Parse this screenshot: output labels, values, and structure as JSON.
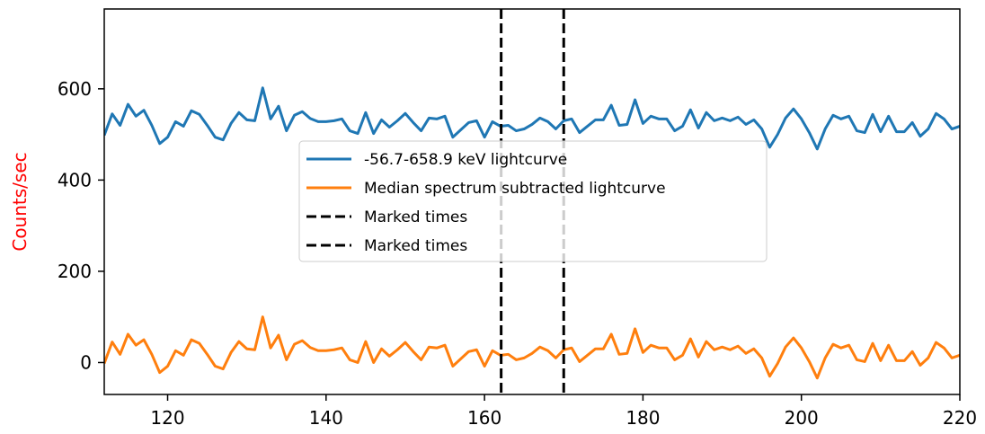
{
  "chart_data": {
    "type": "line",
    "xlabel": "",
    "ylabel": "Counts/sec",
    "ylabel_color": "#ff0000",
    "xlim": [
      112,
      220
    ],
    "ylim": [
      -70,
      775
    ],
    "xticks": [
      120,
      140,
      160,
      180,
      200,
      220
    ],
    "yticks": [
      0,
      200,
      400,
      600
    ],
    "grid": false,
    "legend_position": "center",
    "series": [
      {
        "name": "-56.7-658.9 keV lightcurve",
        "color": "#1f77b4",
        "x": [
          112,
          113,
          114,
          115,
          116,
          117,
          118,
          119,
          120,
          121,
          122,
          123,
          124,
          125,
          126,
          127,
          128,
          129,
          130,
          131,
          132,
          133,
          134,
          135,
          136,
          137,
          138,
          139,
          140,
          141,
          142,
          143,
          144,
          145,
          146,
          147,
          148,
          149,
          150,
          151,
          152,
          153,
          154,
          155,
          156,
          157,
          158,
          159,
          160,
          161,
          162,
          163,
          164,
          165,
          166,
          167,
          168,
          169,
          170,
          171,
          172,
          173,
          174,
          175,
          176,
          177,
          178,
          179,
          180,
          181,
          182,
          183,
          184,
          185,
          186,
          187,
          188,
          189,
          190,
          191,
          192,
          193,
          194,
          195,
          196,
          197,
          198,
          199,
          200,
          201,
          202,
          203,
          204,
          205,
          206,
          207,
          208,
          209,
          210,
          211,
          212,
          213,
          214,
          215,
          216,
          217,
          218,
          219,
          220
        ],
        "y": [
          498,
          545,
          520,
          566,
          540,
          553,
          520,
          480,
          494,
          528,
          518,
          552,
          544,
          520,
          494,
          488,
          524,
          548,
          532,
          530,
          602,
          534,
          562,
          508,
          542,
          550,
          535,
          528,
          528,
          530,
          534,
          508,
          502,
          548,
          502,
          532,
          516,
          530,
          546,
          526,
          508,
          536,
          534,
          540,
          494,
          510,
          526,
          530,
          494,
          528,
          518,
          520,
          508,
          512,
          522,
          536,
          528,
          512,
          530,
          534,
          504,
          518,
          532,
          532,
          564,
          520,
          522,
          576,
          524,
          540,
          534,
          534,
          508,
          518,
          554,
          514,
          548,
          530,
          536,
          530,
          538,
          522,
          532,
          512,
          472,
          500,
          536,
          556,
          534,
          504,
          468,
          512,
          542,
          534,
          540,
          508,
          504,
          544,
          506,
          540,
          506,
          506,
          526,
          496,
          512,
          546,
          534,
          512,
          518
        ]
      },
      {
        "name": "Median spectrum subtracted lightcurve",
        "color": "#ff7f0e",
        "x": [
          112,
          113,
          114,
          115,
          116,
          117,
          118,
          119,
          120,
          121,
          122,
          123,
          124,
          125,
          126,
          127,
          128,
          129,
          130,
          131,
          132,
          133,
          134,
          135,
          136,
          137,
          138,
          139,
          140,
          141,
          142,
          143,
          144,
          145,
          146,
          147,
          148,
          149,
          150,
          151,
          152,
          153,
          154,
          155,
          156,
          157,
          158,
          159,
          160,
          161,
          162,
          163,
          164,
          165,
          166,
          167,
          168,
          169,
          170,
          171,
          172,
          173,
          174,
          175,
          176,
          177,
          178,
          179,
          180,
          181,
          182,
          183,
          184,
          185,
          186,
          187,
          188,
          189,
          190,
          191,
          192,
          193,
          194,
          195,
          196,
          197,
          198,
          199,
          200,
          201,
          202,
          203,
          204,
          205,
          206,
          207,
          208,
          209,
          210,
          211,
          212,
          213,
          214,
          215,
          216,
          217,
          218,
          219,
          220
        ],
        "y": [
          -2,
          45,
          18,
          62,
          38,
          50,
          18,
          -22,
          -8,
          26,
          16,
          50,
          42,
          18,
          -8,
          -14,
          22,
          46,
          30,
          28,
          100,
          32,
          60,
          6,
          40,
          48,
          33,
          26,
          26,
          28,
          32,
          6,
          0,
          46,
          0,
          30,
          14,
          28,
          44,
          24,
          6,
          34,
          32,
          38,
          -8,
          8,
          24,
          28,
          -8,
          26,
          16,
          18,
          6,
          10,
          20,
          34,
          26,
          10,
          28,
          32,
          2,
          16,
          30,
          30,
          62,
          18,
          20,
          74,
          22,
          38,
          32,
          32,
          6,
          16,
          52,
          12,
          46,
          28,
          34,
          28,
          36,
          20,
          30,
          10,
          -30,
          -2,
          34,
          54,
          32,
          2,
          -34,
          10,
          40,
          32,
          38,
          6,
          2,
          42,
          4,
          38,
          4,
          4,
          24,
          -6,
          10,
          44,
          32,
          10,
          16
        ]
      },
      {
        "name": "Marked times",
        "color": "#000000",
        "style": "dashed",
        "x": [
          162.1,
          162.1
        ]
      },
      {
        "name": "Marked times",
        "color": "#000000",
        "style": "dashed",
        "x": [
          170.0,
          170.0
        ]
      }
    ]
  }
}
